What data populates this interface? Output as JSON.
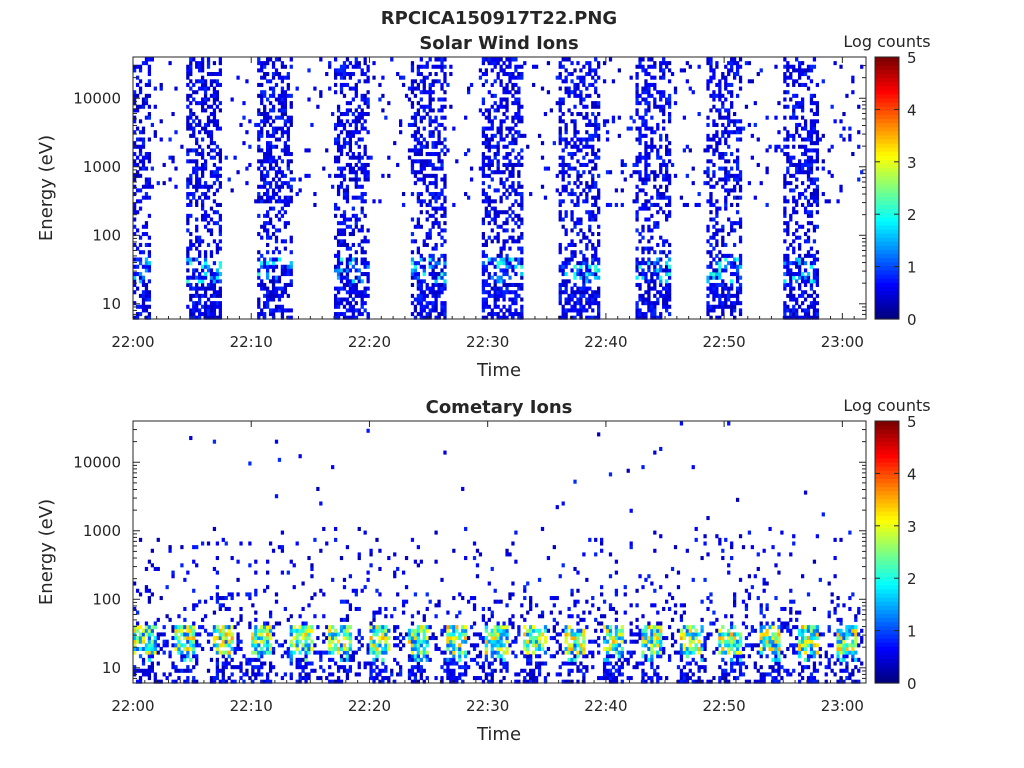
{
  "figure_title": "RPCICA150917T22.PNG",
  "chart_data": [
    {
      "type": "heatmap",
      "title": "Solar Wind Ions",
      "xlabel": "Time",
      "ylabel": "Energy (eV)",
      "x_range": [
        "22:00",
        "23:02"
      ],
      "x_ticks": [
        "22:00",
        "22:10",
        "22:20",
        "22:30",
        "22:40",
        "22:50",
        "23:00"
      ],
      "y_scale": "log",
      "y_range": [
        6,
        40000
      ],
      "y_ticks": [
        "10",
        "100",
        "1000",
        "10000"
      ],
      "colorbar": {
        "label": "Log counts",
        "range": [
          0,
          5
        ],
        "ticks": [
          "0",
          "1",
          "2",
          "3",
          "4",
          "5"
        ],
        "colormap": "jet"
      },
      "bursts_start_minute": [
        0.0,
        4.5,
        10.5,
        17.0,
        23.3,
        29.5,
        36.0,
        42.3,
        48.5,
        55.0
      ],
      "bursts_end_minute": [
        1.5,
        7.3,
        13.3,
        20.0,
        26.5,
        33.0,
        39.5,
        45.5,
        51.5,
        58.0
      ],
      "hot_spot_energy_eV": 30,
      "max_log_counts": 2.2
    },
    {
      "type": "heatmap",
      "title": "Cometary Ions",
      "xlabel": "Time",
      "ylabel": "Energy (eV)",
      "x_range": [
        "22:00",
        "23:02"
      ],
      "x_ticks": [
        "22:00",
        "22:10",
        "22:20",
        "22:30",
        "22:40",
        "22:50",
        "23:00"
      ],
      "y_scale": "log",
      "y_range": [
        6,
        40000
      ],
      "y_ticks": [
        "10",
        "100",
        "1000",
        "10000"
      ],
      "colorbar": {
        "label": "Log counts",
        "range": [
          0,
          5
        ],
        "ticks": [
          "0",
          "1",
          "2",
          "3",
          "4",
          "5"
        ],
        "colormap": "jet"
      },
      "hot_band_energy_eV": [
        15,
        40
      ],
      "max_log_counts": 3.6
    }
  ]
}
